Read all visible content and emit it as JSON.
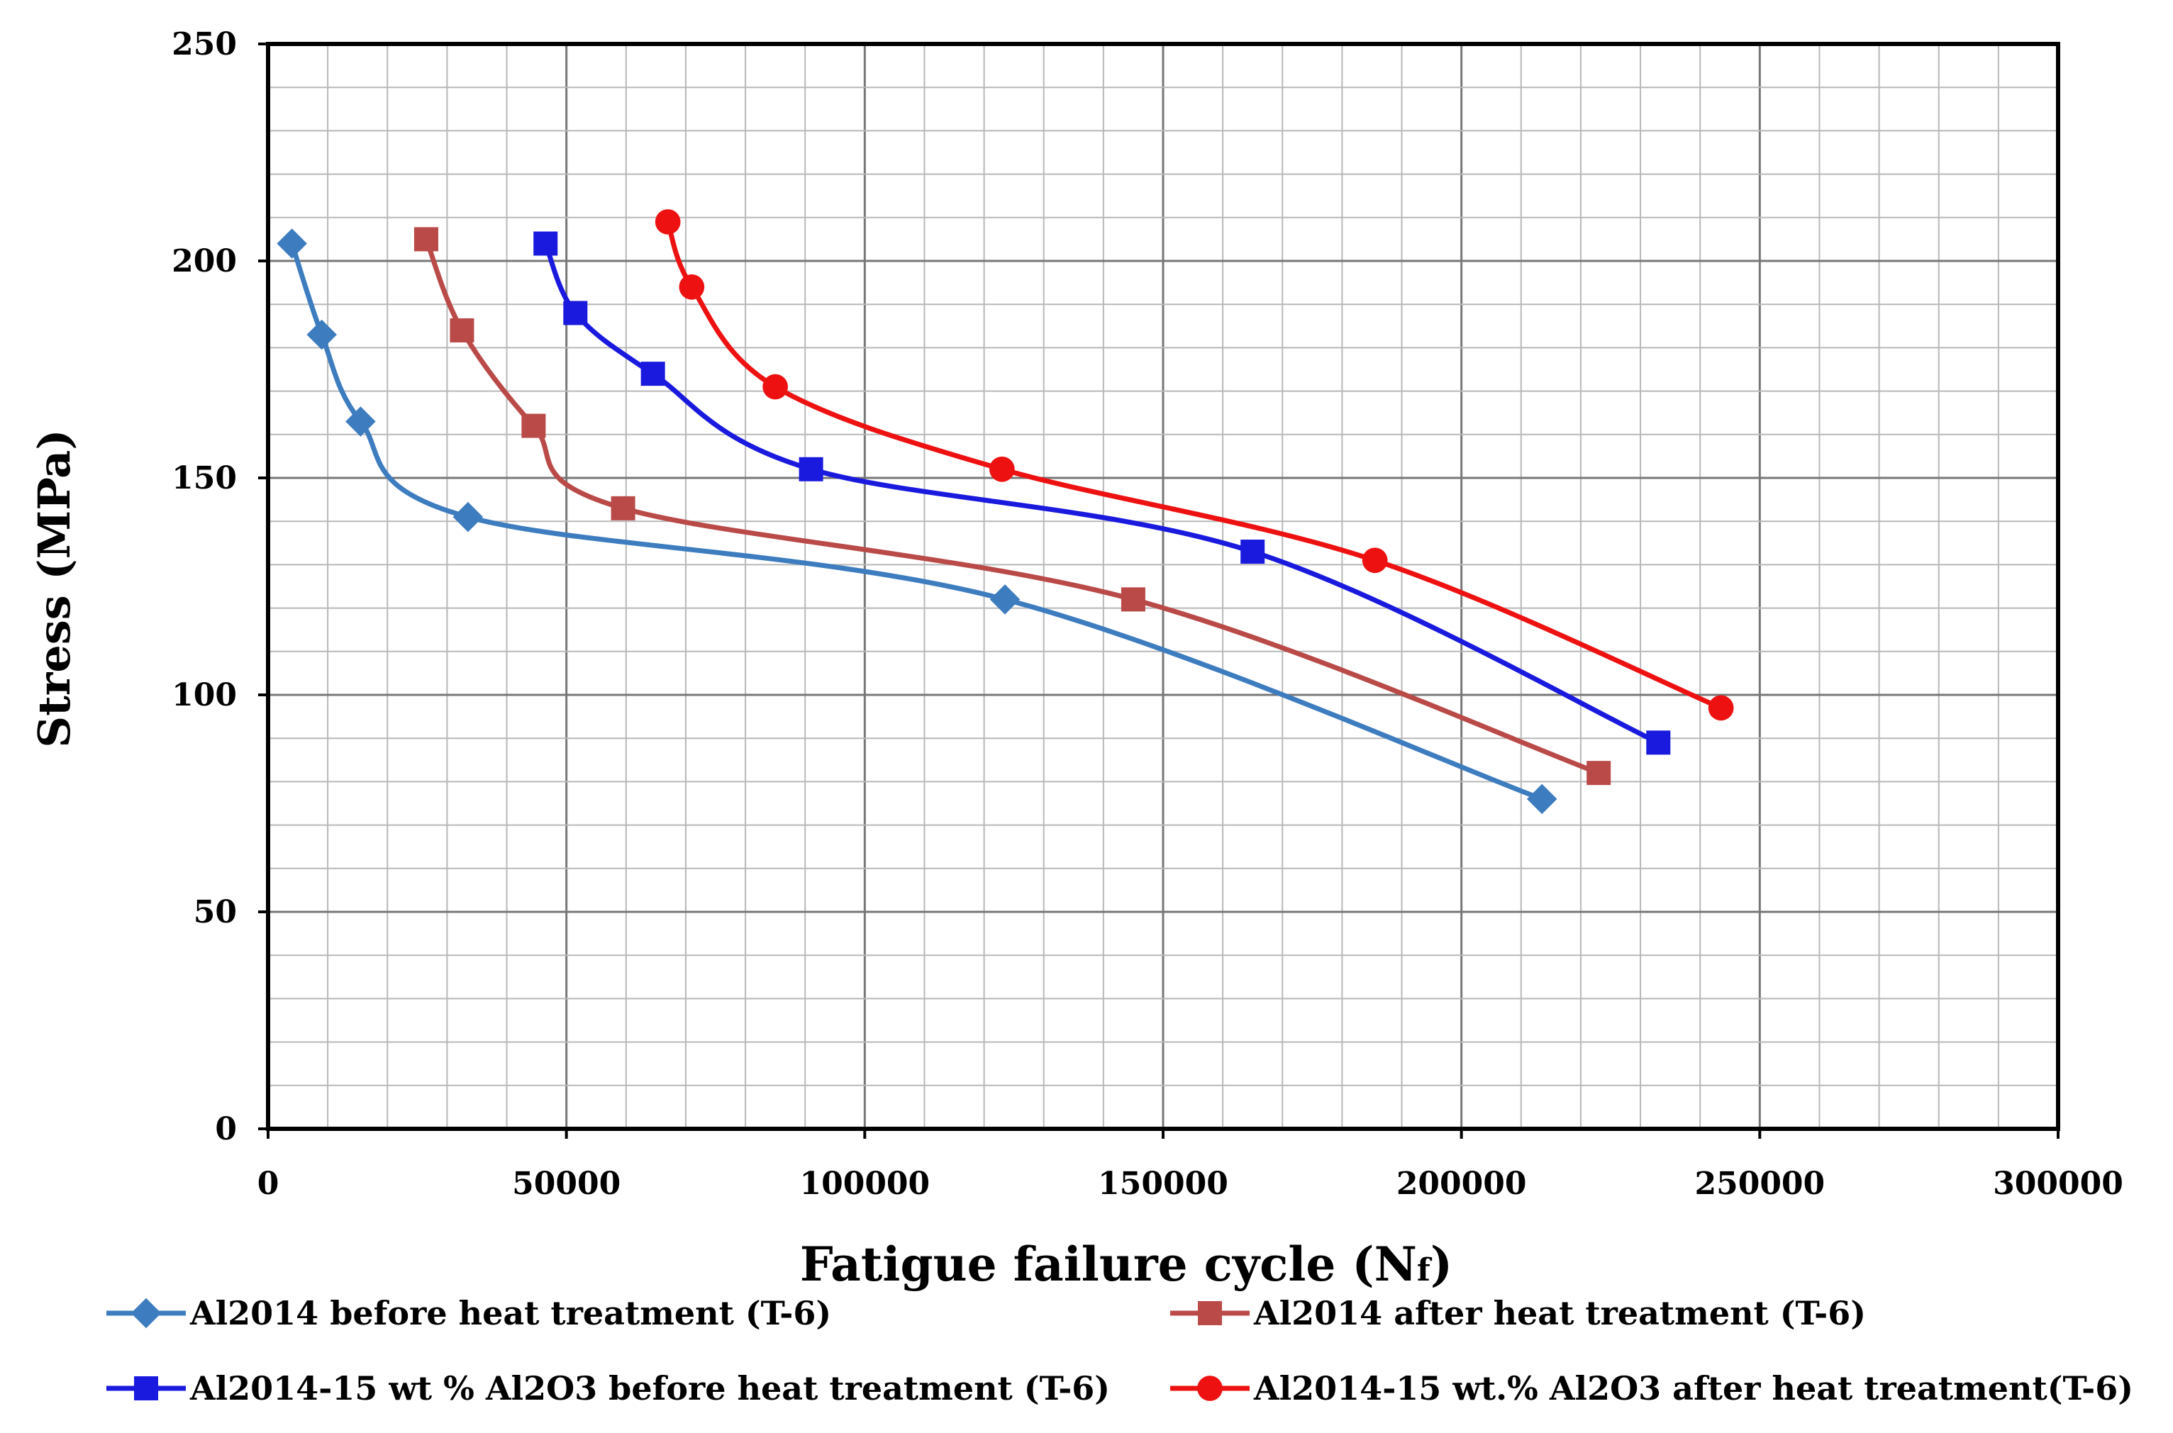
{
  "chart_data": {
    "type": "line",
    "title": "",
    "xlabel": "Fatigue failure cycle (N",
    "xlabel_subscript": "f",
    "xlabel_close": ")",
    "ylabel": "Stress (MPa)",
    "xlim": [
      0,
      300000
    ],
    "ylim": [
      0,
      250
    ],
    "x_major_ticks": [
      0,
      50000,
      100000,
      150000,
      200000,
      250000,
      300000
    ],
    "x_tick_labels": [
      "0",
      "50000",
      "100000",
      "150000",
      "200000",
      "250000",
      "300000"
    ],
    "y_major_ticks": [
      0,
      50,
      100,
      150,
      200,
      250
    ],
    "y_tick_labels": [
      "0",
      "50",
      "100",
      "150",
      "200",
      "250"
    ],
    "x_minor_step": 10000,
    "y_minor_step": 10,
    "grid": true,
    "legend_position": "bottom",
    "series": [
      {
        "name": "Al2014 before heat treatment (T-6)",
        "color": "#3d7dbf",
        "marker": "diamond",
        "x": [
          4000,
          9000,
          15500,
          33500,
          123500,
          213500
        ],
        "y": [
          204,
          183,
          163,
          141,
          122,
          76
        ]
      },
      {
        "name": "Al2014 after heat treatment (T-6)",
        "color": "#b94a48",
        "marker": "square",
        "x": [
          26500,
          32500,
          44500,
          59500,
          145000,
          223000
        ],
        "y": [
          205,
          184,
          162,
          143,
          122,
          82
        ]
      },
      {
        "name": "Al2014-15 wt % Al2O3 before heat treatment (T-6)",
        "color": "#1a1adf",
        "marker": "square",
        "x": [
          46500,
          51500,
          64500,
          91000,
          165000,
          233000
        ],
        "y": [
          204,
          188,
          174,
          152,
          133,
          89
        ]
      },
      {
        "name": "Al2014-15 wt.% Al2O3 after heat treatment(T-6)",
        "color": "#ee1111",
        "marker": "circle",
        "x": [
          67000,
          71000,
          85000,
          123000,
          185500,
          243500
        ],
        "y": [
          209,
          194,
          171,
          152,
          131,
          97
        ]
      }
    ]
  }
}
